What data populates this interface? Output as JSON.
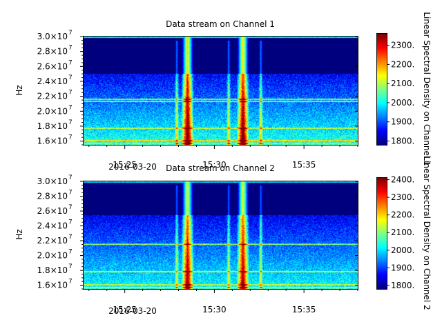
{
  "chart_data": [
    {
      "type": "heatmap",
      "title": "Data stream on Channel 1",
      "xlabel": "",
      "ylabel": "Hz",
      "date_label": "2016-03-20",
      "x_ticks": [
        "15:25",
        "15:30",
        "15:35"
      ],
      "x_range_minutes": [
        22.7,
        38.0
      ],
      "x_tick_minutes": [
        25,
        30,
        35
      ],
      "y_range": [
        15500000,
        30000000
      ],
      "y_ticks": [
        16000000,
        18000000,
        20000000,
        22000000,
        24000000,
        26000000,
        28000000,
        30000000
      ],
      "y_tick_labels": [
        "1.6×10",
        "1.8×10",
        "2.0×10",
        "2.2×10",
        "2.4×10",
        "2.6×10",
        "2.8×10",
        "3.0×10"
      ],
      "y_tick_exponent": "7",
      "colorbar": {
        "label": "Linear Spectral Density on Channel 1",
        "range": [
          1780,
          2360
        ],
        "ticks": [
          1800,
          1900,
          2000,
          2100,
          2200,
          2300
        ],
        "tick_labels": [
          "1800.",
          "1900.",
          "2000.",
          "2100.",
          "2200.",
          "2300."
        ],
        "colormap": [
          "#00007f",
          "#0000ff",
          "#0080ff",
          "#00ffff",
          "#80ff80",
          "#ffff00",
          "#ff8000",
          "#ff0000",
          "#7f0000"
        ]
      },
      "features": {
        "noise_floor_above_hz": 25000000,
        "bursts_minutes": [
          28.5,
          31.6
        ],
        "weak_bursts_minutes": [
          27.9,
          30.8,
          32.6
        ],
        "horizontal_bands_hz": [
          15650000,
          16000000,
          17700000,
          21300000,
          21600000
        ]
      }
    },
    {
      "type": "heatmap",
      "title": "Data stream on Channel 2",
      "xlabel": "",
      "ylabel": "Hz",
      "date_label": "2016-03-20",
      "x_ticks": [
        "15:25",
        "15:30",
        "15:35"
      ],
      "x_range_minutes": [
        22.7,
        38.0
      ],
      "x_tick_minutes": [
        25,
        30,
        35
      ],
      "y_range": [
        15500000,
        30000000
      ],
      "y_ticks": [
        16000000,
        18000000,
        20000000,
        22000000,
        24000000,
        26000000,
        28000000,
        30000000
      ],
      "y_tick_labels": [
        "1.6×10",
        "1.8×10",
        "2.0×10",
        "2.2×10",
        "2.4×10",
        "2.6×10",
        "2.8×10",
        "3.0×10"
      ],
      "y_tick_exponent": "7",
      "colorbar": {
        "label": "Linear Spectral Density on Channel 2",
        "range": [
          1780,
          2410
        ],
        "ticks": [
          1800,
          1900,
          2000,
          2100,
          2200,
          2300,
          2400
        ],
        "tick_labels": [
          "1800.",
          "1900.",
          "2000.",
          "2100.",
          "2200.",
          "2300.",
          "2400."
        ],
        "colormap": [
          "#00007f",
          "#0000ff",
          "#0080ff",
          "#00ffff",
          "#80ff80",
          "#ffff00",
          "#ff8000",
          "#ff0000",
          "#7f0000"
        ]
      },
      "features": {
        "noise_floor_above_hz": 25500000,
        "bursts_minutes": [
          28.5,
          31.6
        ],
        "weak_bursts_minutes": [
          27.9,
          30.8,
          32.6
        ],
        "horizontal_bands_hz": [
          15650000,
          16000000,
          17800000,
          21500000
        ]
      }
    }
  ]
}
